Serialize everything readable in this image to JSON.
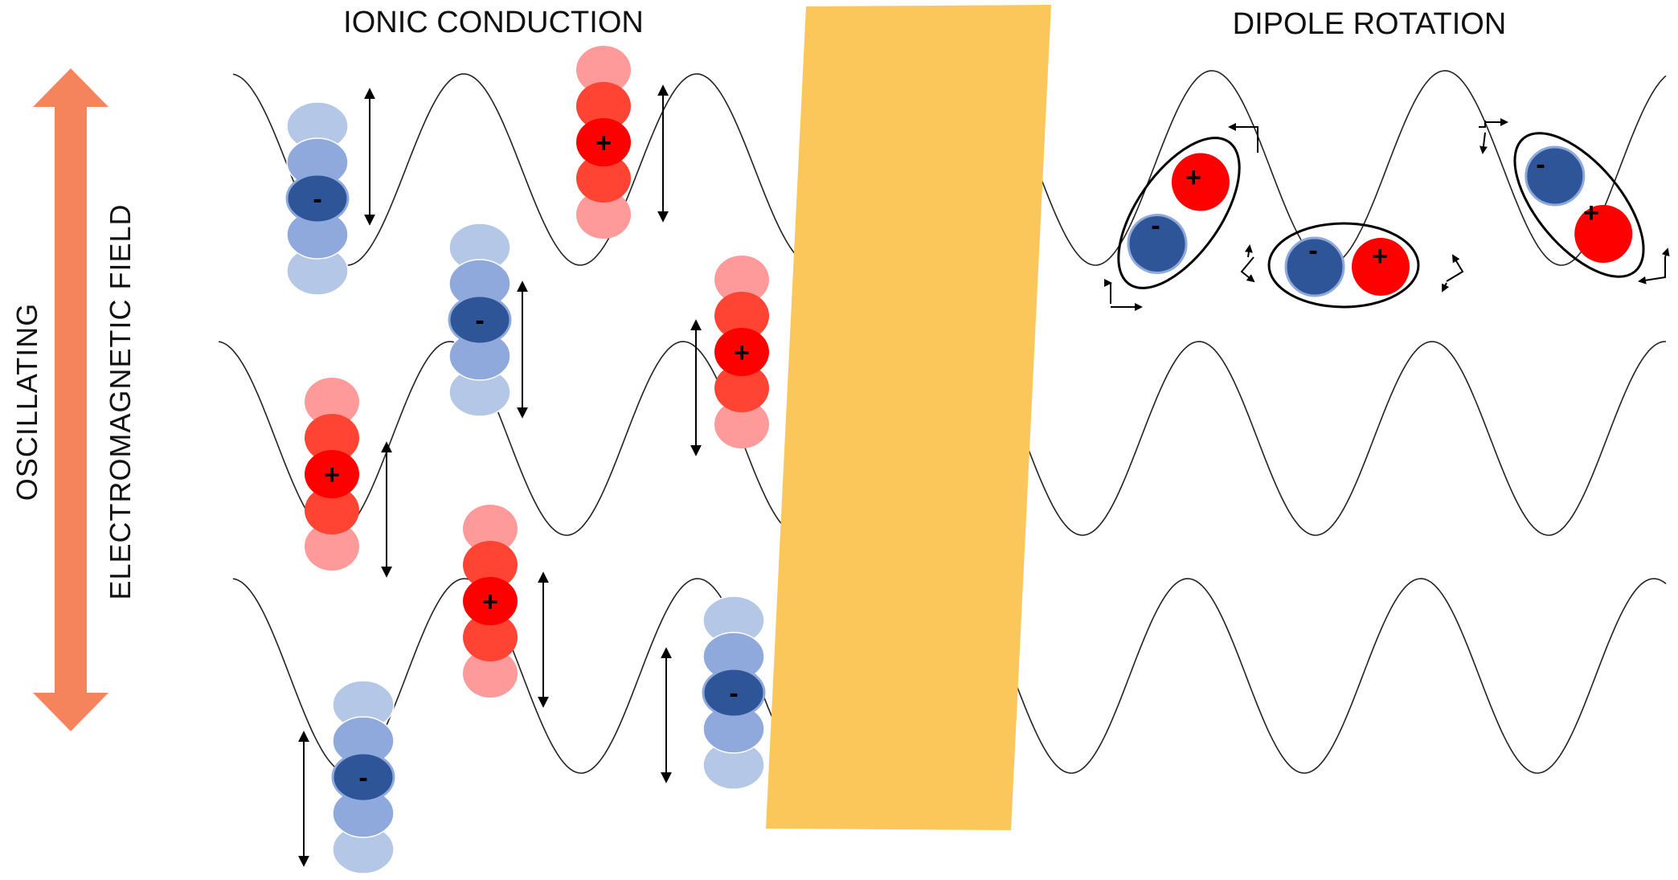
{
  "labels": {
    "ionic_title": "IONIC CONDUCTION",
    "dipole_title": "DIPOLE ROTATION",
    "field_line1": "OSCILLATING",
    "field_line2": "ELECTROMAGNETIC FIELD"
  },
  "charge_symbols": {
    "negative": "-",
    "positive": "+"
  },
  "colors": {
    "field_arrow": "#f5845c",
    "separator_band": "#fcc75a",
    "wave": "#222222",
    "negative_core": "#2d5597",
    "negative_mid": "#8fa9dc",
    "negative_light": "#b4c7e7",
    "positive_core": "#ff0000",
    "positive_mid": "#ff4433",
    "positive_light": "#ff9a9a",
    "text": "#111111"
  }
}
